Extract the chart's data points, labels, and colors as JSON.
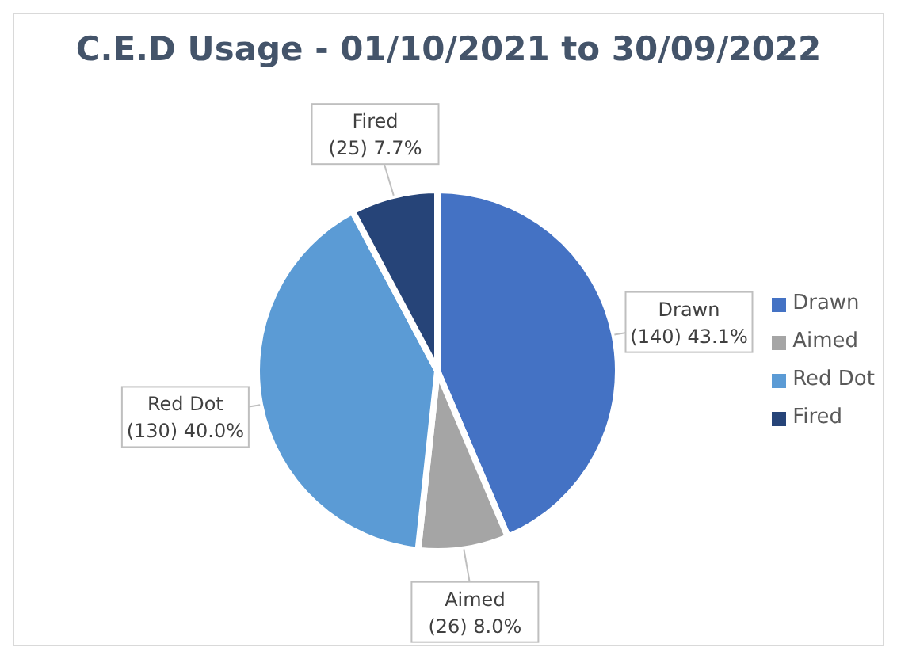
{
  "chart_data": {
    "type": "pie",
    "title": "C.E.D Usage - 01/10/2021 to 30/09/2022",
    "categories": [
      "Drawn",
      "Aimed",
      "Red Dot",
      "Fired"
    ],
    "values": [
      140,
      26,
      130,
      25
    ],
    "colors": [
      "#4472c4",
      "#a5a5a5",
      "#5b9bd5",
      "#264478"
    ],
    "value_labels": [
      "(140) 43.1%",
      "(26) 8.0%",
      "(130) 40.0%",
      "(25) 7.7%"
    ],
    "legend": "right"
  }
}
